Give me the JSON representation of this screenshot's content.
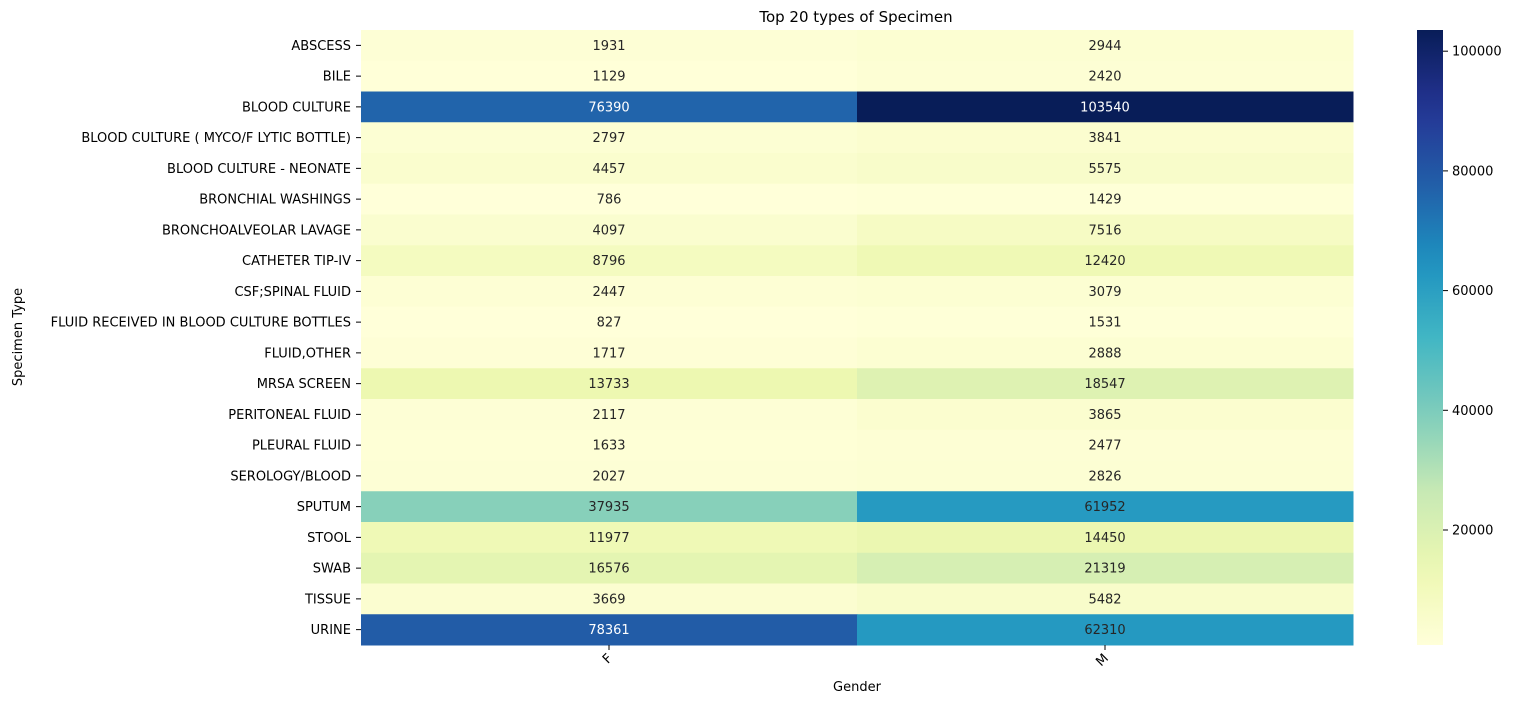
{
  "chart_data": {
    "type": "heatmap",
    "title": "Top 20 types of Specimen",
    "xlabel": "Gender",
    "ylabel": "Specimen Type",
    "x_categories": [
      "F",
      "M"
    ],
    "y_categories": [
      "ABSCESS",
      "BILE",
      "BLOOD CULTURE",
      "BLOOD CULTURE ( MYCO/F LYTIC BOTTLE)",
      "BLOOD CULTURE - NEONATE",
      "BRONCHIAL WASHINGS",
      "BRONCHOALVEOLAR LAVAGE",
      "CATHETER TIP-IV",
      "CSF;SPINAL FLUID",
      "FLUID RECEIVED IN BLOOD CULTURE BOTTLES",
      "FLUID,OTHER",
      "MRSA SCREEN",
      "PERITONEAL FLUID",
      "PLEURAL FLUID",
      "SEROLOGY/BLOOD",
      "SPUTUM",
      "STOOL",
      "SWAB",
      "TISSUE",
      "URINE"
    ],
    "values": [
      [
        1931,
        2944
      ],
      [
        1129,
        2420
      ],
      [
        76390,
        103540
      ],
      [
        2797,
        3841
      ],
      [
        4457,
        5575
      ],
      [
        786,
        1429
      ],
      [
        4097,
        7516
      ],
      [
        8796,
        12420
      ],
      [
        2447,
        3079
      ],
      [
        827,
        1531
      ],
      [
        1717,
        2888
      ],
      [
        13733,
        18547
      ],
      [
        2117,
        3865
      ],
      [
        1633,
        2477
      ],
      [
        2027,
        2826
      ],
      [
        37935,
        61952
      ],
      [
        11977,
        14450
      ],
      [
        16576,
        21319
      ],
      [
        3669,
        5482
      ],
      [
        78361,
        62310
      ]
    ],
    "colormap": "YlGnBu",
    "colorbar": {
      "range": [
        786,
        103540
      ],
      "ticks": [
        20000,
        40000,
        60000,
        80000,
        100000
      ],
      "tick_labels": [
        "20000",
        "40000",
        "60000",
        "80000",
        "100000"
      ]
    },
    "annotations": true
  }
}
